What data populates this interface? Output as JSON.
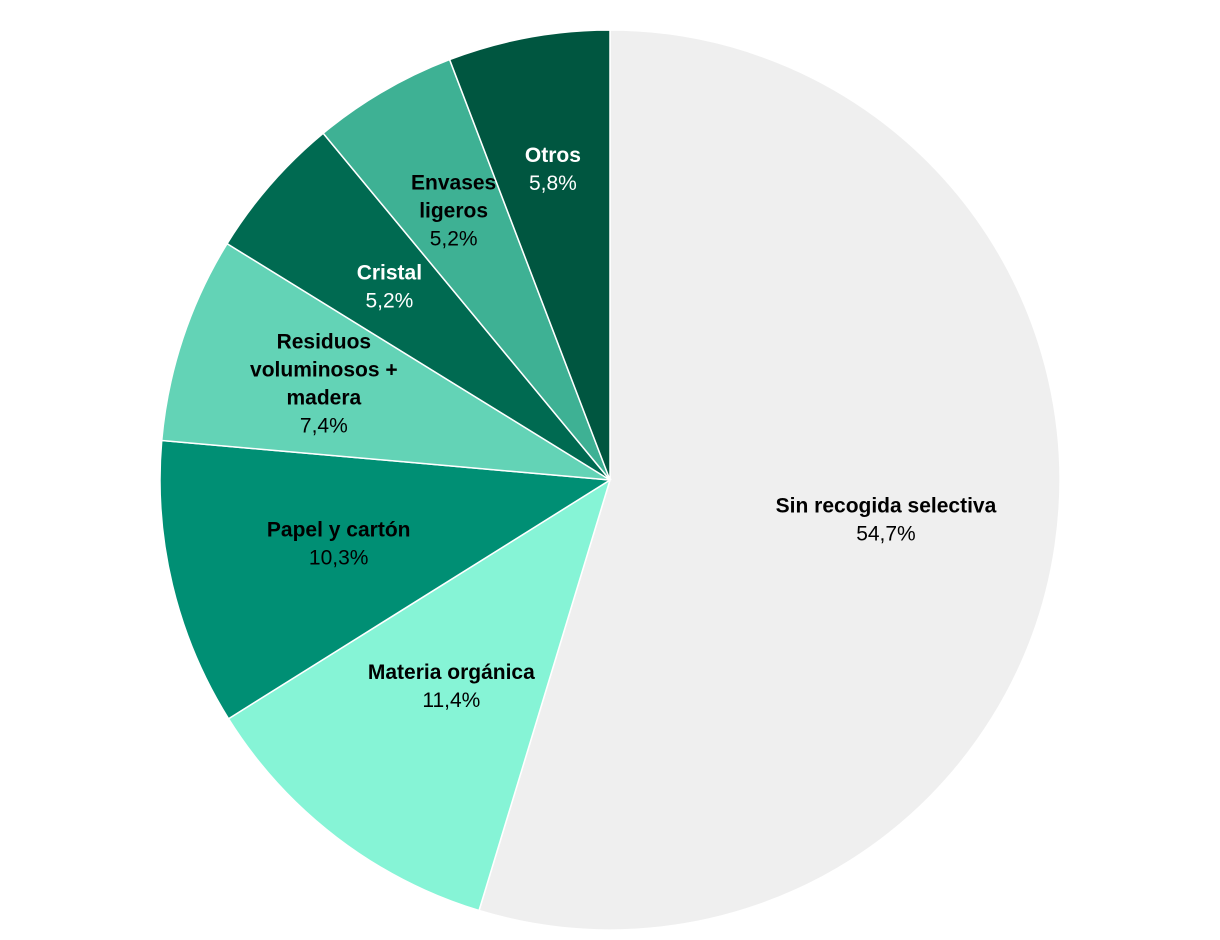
{
  "chart_data": {
    "type": "pie",
    "title": "",
    "start_angle_deg": 0,
    "direction": "clockwise",
    "legend": "none",
    "slices": [
      {
        "label": "Sin recogida selectiva",
        "value": 54.7,
        "display": "54,7%",
        "color": "#efefef",
        "text_color": "#000000",
        "label_lines": [
          "Sin recogida selectiva"
        ]
      },
      {
        "label": "Materia orgánica",
        "value": 11.4,
        "display": "11,4%",
        "color": "#86f4d6",
        "text_color": "#000000",
        "label_lines": [
          "Materia orgánica"
        ]
      },
      {
        "label": "Papel y cartón",
        "value": 10.3,
        "display": "10,3%",
        "color": "#008f74",
        "text_color": "#000000",
        "label_lines": [
          "Papel y cartón"
        ]
      },
      {
        "label": "Residuos voluminosos + madera",
        "value": 7.4,
        "display": "7,4%",
        "color": "#63d3b6",
        "text_color": "#000000",
        "label_lines": [
          "Residuos",
          "voluminosos +",
          "madera"
        ]
      },
      {
        "label": "Cristal",
        "value": 5.2,
        "display": "5,2%",
        "color": "#006a51",
        "text_color": "#ffffff",
        "label_lines": [
          "Cristal"
        ]
      },
      {
        "label": "Envases ligeros",
        "value": 5.2,
        "display": "5,2%",
        "color": "#3eb194",
        "text_color": "#000000",
        "label_lines": [
          "Envases",
          "ligeros"
        ]
      },
      {
        "label": "Otros",
        "value": 5.8,
        "display": "5,8%",
        "color": "#005640",
        "text_color": "#ffffff",
        "label_lines": [
          "Otros"
        ]
      }
    ]
  }
}
